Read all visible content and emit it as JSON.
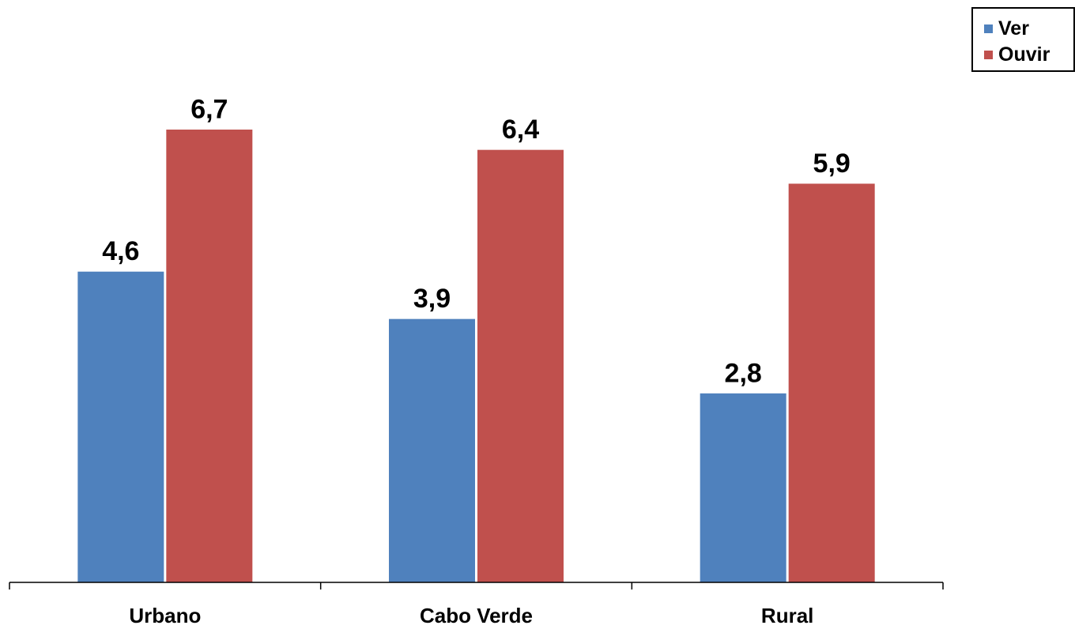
{
  "chart_data": {
    "type": "bar",
    "title": "",
    "xlabel": "",
    "ylabel": "",
    "categories": [
      "Urbano",
      "Cabo Verde",
      "Rural"
    ],
    "series": [
      {
        "name": "Ver",
        "values": [
          4.6,
          3.9,
          2.8
        ],
        "labels": [
          "4,6",
          "3,9",
          "2,8"
        ],
        "color": "#4F81BD"
      },
      {
        "name": "Ouvir",
        "values": [
          6.7,
          6.4,
          5.9
        ],
        "labels": [
          "6,7",
          "6,4",
          "5,9"
        ],
        "color": "#C0504D"
      }
    ],
    "ylim": [
      0,
      8
    ],
    "grid": false,
    "legend_position": "top-right"
  }
}
